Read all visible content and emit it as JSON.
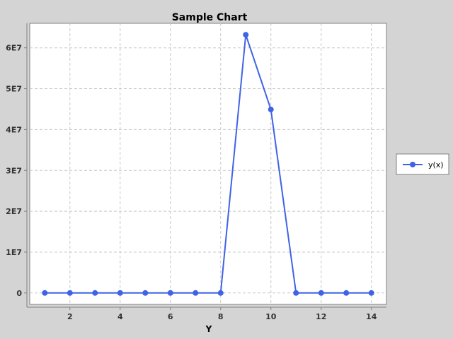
{
  "chart_data": {
    "type": "line",
    "title": "Sample Chart",
    "xlabel": "Y",
    "ylabel": "",
    "xlim": [
      0.4,
      14.6
    ],
    "ylim": [
      -2800000,
      66000000
    ],
    "x_ticks": [
      2,
      4,
      6,
      8,
      10,
      12,
      14
    ],
    "x_tick_labels": [
      "2",
      "4",
      "6",
      "8",
      "10",
      "12",
      "14"
    ],
    "y_ticks": [
      0,
      10000000,
      20000000,
      30000000,
      40000000,
      50000000,
      60000000
    ],
    "y_tick_labels": [
      "0",
      "1E7",
      "2E7",
      "3E7",
      "4E7",
      "5E7",
      "6E7"
    ],
    "grid": true,
    "legend_position": "right",
    "series": [
      {
        "name": "y(x)",
        "color": "#3f63e6",
        "x": [
          1,
          2,
          3,
          4,
          5,
          6,
          7,
          8,
          9,
          10,
          11,
          12,
          13,
          14
        ],
        "y": [
          0,
          0,
          0,
          0,
          0,
          0,
          0,
          0,
          63200000,
          44900000,
          0,
          0,
          0,
          0
        ]
      }
    ]
  },
  "colors": {
    "background": "#d4d4d4",
    "plot_background": "#ffffff",
    "grid": "#c8c8c8",
    "axis": "#808080"
  }
}
